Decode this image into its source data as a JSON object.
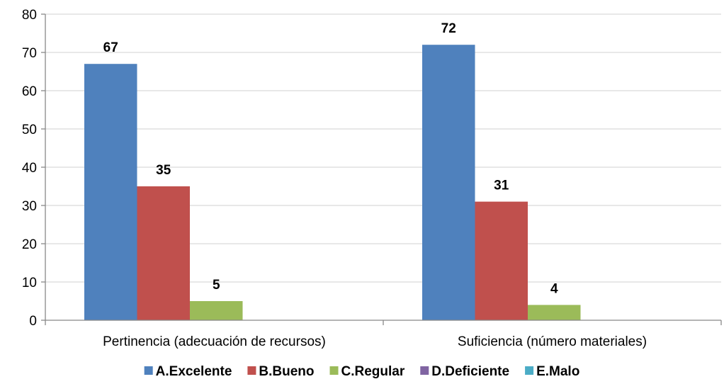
{
  "chart_data": {
    "type": "bar",
    "categories": [
      "Pertinencia (adecuación de recursos)",
      "Suficiencia (número materiales)"
    ],
    "series": [
      {
        "name": "A.Excelente",
        "color": "#4F81BD",
        "values": [
          67,
          72
        ]
      },
      {
        "name": "B.Bueno",
        "color": "#C0504D",
        "values": [
          35,
          31
        ]
      },
      {
        "name": "C.Regular",
        "color": "#9BBB59",
        "values": [
          5,
          4
        ]
      },
      {
        "name": "D.Deficiente",
        "color": "#8064A2",
        "values": [
          0,
          0
        ]
      },
      {
        "name": "E.Malo",
        "color": "#4BACC6",
        "values": [
          0,
          0
        ]
      }
    ],
    "data_labels": [
      [
        "67",
        "72"
      ],
      [
        "35",
        "31"
      ],
      [
        "5",
        "4"
      ],
      [
        "",
        ""
      ],
      [
        "",
        ""
      ]
    ],
    "ylim": [
      0,
      80
    ],
    "yticks": [
      0,
      10,
      20,
      30,
      40,
      50,
      60,
      70,
      80
    ],
    "grid": true,
    "legend_position": "bottom",
    "title": "",
    "xlabel": "",
    "ylabel": ""
  }
}
